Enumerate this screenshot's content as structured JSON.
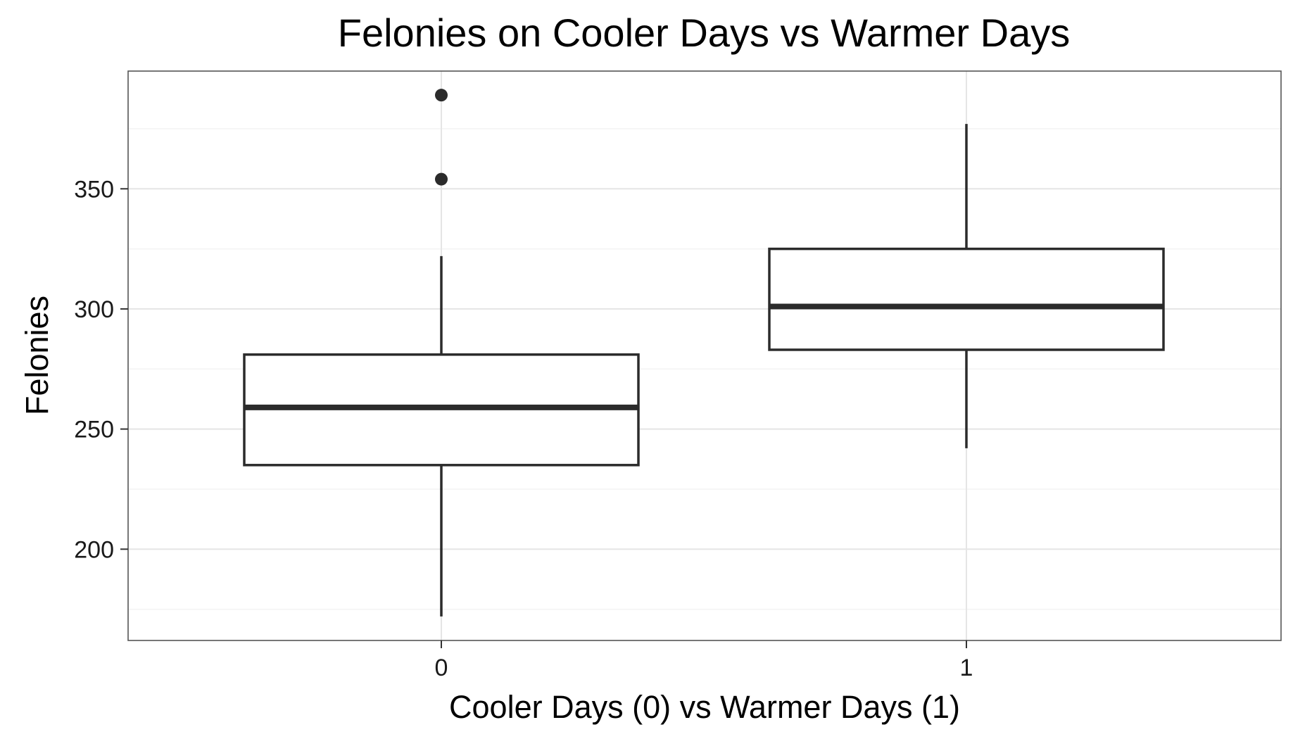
{
  "chart_data": {
    "type": "boxplot",
    "title": "Felonies on Cooler Days vs Warmer Days",
    "xlabel": "Cooler Days (0) vs Warmer Days (1)",
    "ylabel": "Felonies",
    "categories": [
      "0",
      "1"
    ],
    "ylim": [
      162,
      399
    ],
    "yticks": [
      200,
      250,
      300,
      350
    ],
    "grid": true,
    "boxes": [
      {
        "category": "0",
        "whisker_low": 172,
        "q1": 235,
        "median": 259,
        "q3": 281,
        "whisker_high": 322,
        "outliers": [
          354,
          389
        ]
      },
      {
        "category": "1",
        "whisker_low": 242,
        "q1": 283,
        "median": 301,
        "q3": 325,
        "whisker_high": 377,
        "outliers": []
      }
    ]
  },
  "colors": {
    "box_stroke": "#2b2b2b",
    "panel_border": "#555555",
    "grid_major": "#e5e5e5",
    "grid_minor": "#f3f3f3"
  }
}
